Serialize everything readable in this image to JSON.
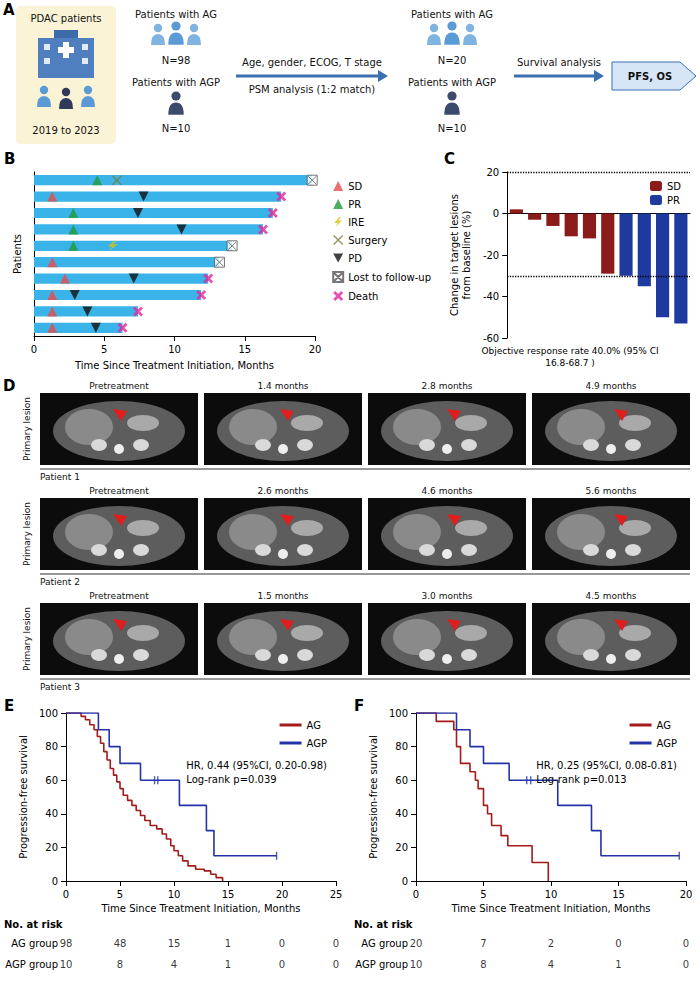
{
  "diagram": {
    "panel": "A",
    "source": {
      "title": "PDAC patients",
      "years": "2019 to 2023"
    },
    "cohort": [
      {
        "label": "Patients with AG",
        "n": "N=98"
      },
      {
        "label": "Patients with AGP",
        "n": "N=10"
      }
    ],
    "matching": {
      "covariates": "Age, gender, ECOG, T stage",
      "method": "PSM analysis (1:2 match)"
    },
    "matched": [
      {
        "label": "Patients with AG",
        "n": "N=20"
      },
      {
        "label": "Patients with AGP",
        "n": "N=10"
      }
    ],
    "analysis": "Survival analysis",
    "endpoints": "PFS, OS"
  },
  "chart_data": [
    {
      "panel": "B",
      "type": "swimmer",
      "orientation": "horizontal",
      "categories": [
        null,
        null,
        null,
        null,
        null,
        null,
        null,
        null,
        null,
        null
      ],
      "values": [
        19.8,
        17.6,
        17.0,
        16.3,
        14.1,
        13.2,
        12.4,
        11.9,
        7.4,
        6.3
      ],
      "color": "#3ab4e8",
      "x_label": "Time Since Treatment Initiation, Months",
      "y_label": "Patients",
      "xlim": [
        0,
        20
      ],
      "xticks": [
        0,
        5,
        10,
        15,
        20
      ],
      "events": [
        {
          "name": "SD",
          "color": "#e84a4a",
          "marker": "triangle",
          "x": [
            1.3,
            1.3,
            2.2,
            1.3,
            1.3,
            1.3
          ],
          "patient": [
            1,
            5,
            6,
            7,
            8,
            9
          ]
        },
        {
          "name": "PR",
          "color": "#1f9a3a",
          "marker": "triangle",
          "x": [
            4.5,
            2.8,
            2.8,
            2.8
          ],
          "patient": [
            0,
            2,
            3,
            4
          ]
        },
        {
          "name": "IRE",
          "color": "#d6c21a",
          "marker": "bolt",
          "x": [
            5.6
          ],
          "patient": [
            4
          ]
        },
        {
          "name": "Surgery",
          "color": "#7a7a30",
          "marker": "tools",
          "x": [
            5.9
          ],
          "patient": [
            0
          ]
        },
        {
          "name": "PD",
          "color": "#111111",
          "marker": "triangle-down",
          "x": [
            7.8,
            7.4,
            10.5,
            7.1,
            2.9,
            3.8,
            4.4
          ],
          "patient": [
            1,
            2,
            3,
            6,
            7,
            8,
            9
          ]
        },
        {
          "name": "Lost to follow-up",
          "color": "#555555",
          "marker": "boxed-x",
          "x": [
            19.8,
            14.1,
            13.2
          ],
          "patient": [
            0,
            4,
            5
          ]
        },
        {
          "name": "Death",
          "color": "#e0279a",
          "marker": "x",
          "x": [
            17.6,
            17.0,
            16.3,
            12.4,
            11.9,
            7.4,
            6.3
          ],
          "patient": [
            1,
            2,
            3,
            6,
            7,
            8,
            9
          ]
        }
      ],
      "legend": "right",
      "grid": false,
      "tick_labels": "x"
    },
    {
      "panel": "C",
      "type": "bar",
      "categories": [
        null,
        null,
        null,
        null,
        null,
        null,
        null,
        null,
        null,
        null
      ],
      "series": [
        {
          "name": "SD",
          "color": "#8b1a1a",
          "values": [
            2,
            -3,
            -6,
            -11,
            -12,
            -29,
            null,
            null,
            null,
            null
          ]
        },
        {
          "name": "PR",
          "color": "#1f3a9e",
          "values": [
            null,
            null,
            null,
            null,
            null,
            null,
            -30,
            -35,
            -50,
            -53
          ]
        }
      ],
      "y_label": "Change in target lesions from baseline (%)",
      "ylim": [
        -60,
        20
      ],
      "yticks": [
        -60,
        -40,
        -20,
        0,
        20
      ],
      "reference_lines": [
        20,
        -30
      ],
      "annotation": "Objective response rate 40.0% (95% CI 16.8-68.7 )",
      "legend": "top-right",
      "grid": false,
      "tick_labels": "y"
    },
    {
      "panel": "E",
      "type": "line",
      "x_label": "Time Since Treatment Initiation, Months",
      "y_label": "Progression-free survival",
      "xlim": [
        0,
        25
      ],
      "xticks": [
        0,
        5,
        10,
        15,
        20,
        25
      ],
      "ylim": [
        0,
        100
      ],
      "yticks": [
        0,
        20,
        40,
        60,
        80,
        100
      ],
      "series": [
        {
          "name": "AG",
          "color": "#a31a1a",
          "x": [
            0,
            1.4,
            1.8,
            2.2,
            2.6,
            2.9,
            3.2,
            3.5,
            3.8,
            4.1,
            4.4,
            4.7,
            5.0,
            5.3,
            5.7,
            6.1,
            6.5,
            6.9,
            7.3,
            7.8,
            8.4,
            8.9,
            9.3,
            9.7,
            10.0,
            10.4,
            10.8,
            11.3,
            12.0,
            12.8,
            13.4,
            13.9,
            14.5
          ],
          "values": [
            100,
            98,
            96,
            93,
            90,
            86,
            82,
            77,
            72,
            67,
            63,
            59,
            55,
            51,
            48,
            45,
            42,
            39,
            36,
            33,
            31,
            28,
            25,
            21,
            18,
            15,
            12,
            9,
            7,
            6,
            4,
            2,
            0
          ]
        },
        {
          "name": "AGP",
          "color": "#2432a8",
          "x": [
            0,
            3.0,
            4.0,
            5.0,
            6.9,
            10.5,
            13.0,
            13.7,
            19.5
          ],
          "values": [
            100,
            90,
            80,
            70,
            60,
            45,
            30,
            15,
            15
          ],
          "censor_x": [
            8.2,
            8.5,
            19.5
          ],
          "censor_values": [
            60,
            60,
            15
          ]
        }
      ],
      "annotations": [
        "HR, 0.44 (95%CI, 0.20-0.98)",
        "Log-rank p=0.039"
      ],
      "risk_table": {
        "title": "No. at risk",
        "times": [
          0,
          5,
          10,
          15,
          20,
          25
        ],
        "rows": [
          {
            "name": "AG group",
            "values": [
              98,
              48,
              15,
              1,
              0,
              0
            ]
          },
          {
            "name": "AGP group",
            "values": [
              10,
              8,
              4,
              1,
              0,
              0
            ]
          }
        ]
      },
      "legend": "top-right",
      "grid": false
    },
    {
      "panel": "F",
      "type": "line",
      "x_label": "Time Since Treatment Initiation, Months",
      "y_label": "Progression-free survival",
      "xlim": [
        0,
        20
      ],
      "xticks": [
        0,
        5,
        10,
        15,
        20
      ],
      "ylim": [
        0,
        100
      ],
      "yticks": [
        0,
        20,
        40,
        60,
        80,
        100
      ],
      "series": [
        {
          "name": "AG",
          "color": "#a31a1a",
          "x": [
            0,
            1.5,
            2.8,
            3.0,
            3.3,
            4.0,
            4.4,
            4.6,
            5.0,
            5.3,
            5.6,
            6.3,
            6.8,
            8.6,
            9.8
          ],
          "values": [
            100,
            95,
            90,
            80,
            70,
            65,
            60,
            55,
            45,
            40,
            33,
            27,
            21,
            11,
            0
          ]
        },
        {
          "name": "AGP",
          "color": "#2432a8",
          "x": [
            0,
            3.0,
            4.0,
            5.0,
            6.9,
            10.5,
            13.0,
            13.7,
            19.5
          ],
          "values": [
            100,
            90,
            80,
            70,
            60,
            45,
            30,
            15,
            15
          ],
          "censor_x": [
            8.2,
            8.5,
            19.5
          ],
          "censor_values": [
            60,
            60,
            15
          ]
        }
      ],
      "annotations": [
        "HR, 0.25 (95%CI, 0.08-0.81)",
        "Log-rank p=0.013"
      ],
      "risk_table": {
        "title": "No. at risk",
        "times": [
          0,
          5,
          10,
          15,
          20
        ],
        "rows": [
          {
            "name": "AG group",
            "values": [
              20,
              7,
              2,
              0,
              0
            ]
          },
          {
            "name": "AGP group",
            "values": [
              10,
              8,
              4,
              1,
              0
            ]
          }
        ]
      },
      "legend": "top-right",
      "grid": false
    }
  ],
  "images": {
    "panel": "D",
    "rows": [
      {
        "label": "Primary lesion",
        "patient": "Patient 1",
        "times": [
          "Pretreatment",
          "1.4 months",
          "2.8 months",
          "4.9 months"
        ]
      },
      {
        "label": "Primary lesion",
        "patient": "Patient 2",
        "times": [
          "Pretreatment",
          "2.6 months",
          "4.6 months",
          "5.6 months"
        ]
      },
      {
        "label": "Primary lesion",
        "patient": "Patient 3",
        "times": [
          "Pretreatment",
          "1.5 months",
          "3.0 months",
          "4.5 months"
        ]
      }
    ]
  }
}
